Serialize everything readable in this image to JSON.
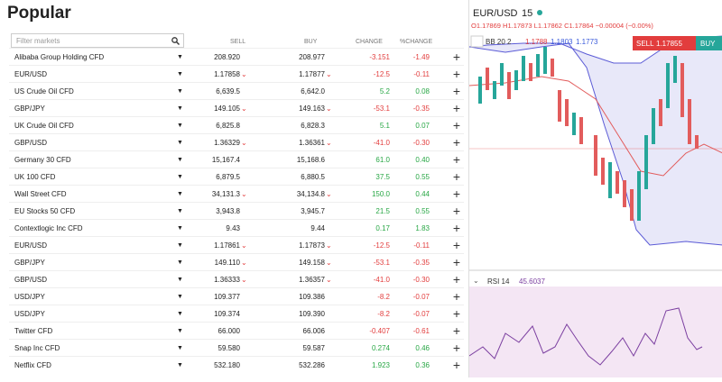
{
  "header": {
    "title": "Popular",
    "filter_placeholder": "Filter markets"
  },
  "table": {
    "columns": [
      "SELL",
      "BUY",
      "CHANGE",
      "%CHANGE"
    ],
    "rows": [
      {
        "name": "Alibaba Group Holding CFD",
        "sell": "208.920",
        "buy": "208.977",
        "change": "-3.151",
        "pct": "-1.49",
        "down": false
      },
      {
        "name": "EUR/USD",
        "sell": "1.17858",
        "buy": "1.17877",
        "change": "-12.5",
        "pct": "-0.11",
        "down": true
      },
      {
        "name": "US Crude Oil CFD",
        "sell": "6,639.5",
        "buy": "6,642.0",
        "change": "5.2",
        "pct": "0.08",
        "down": false
      },
      {
        "name": "GBP/JPY",
        "sell": "149.105",
        "buy": "149.163",
        "change": "-53.1",
        "pct": "-0.35",
        "down": true
      },
      {
        "name": "UK Crude Oil CFD",
        "sell": "6,825.8",
        "buy": "6,828.3",
        "change": "5.1",
        "pct": "0.07",
        "down": false
      },
      {
        "name": "GBP/USD",
        "sell": "1.36329",
        "buy": "1.36361",
        "change": "-41.0",
        "pct": "-0.30",
        "down": true
      },
      {
        "name": "Germany 30 CFD",
        "sell": "15,167.4",
        "buy": "15,168.6",
        "change": "61.0",
        "pct": "0.40",
        "down": false
      },
      {
        "name": "UK 100 CFD",
        "sell": "6,879.5",
        "buy": "6,880.5",
        "change": "37.5",
        "pct": "0.55",
        "down": false
      },
      {
        "name": "Wall Street CFD",
        "sell": "34,131.3",
        "buy": "34,134.8",
        "change": "150.0",
        "pct": "0.44",
        "down": true
      },
      {
        "name": "EU Stocks 50 CFD",
        "sell": "3,943.8",
        "buy": "3,945.7",
        "change": "21.5",
        "pct": "0.55",
        "down": false
      },
      {
        "name": "Contextlogic Inc CFD",
        "sell": "9.43",
        "buy": "9.44",
        "change": "0.17",
        "pct": "1.83",
        "down": false
      },
      {
        "name": "EUR/USD",
        "sell": "1.17861",
        "buy": "1.17873",
        "change": "-12.5",
        "pct": "-0.11",
        "down": true
      },
      {
        "name": "GBP/JPY",
        "sell": "149.110",
        "buy": "149.158",
        "change": "-53.1",
        "pct": "-0.35",
        "down": true
      },
      {
        "name": "GBP/USD",
        "sell": "1.36333",
        "buy": "1.36357",
        "change": "-41.0",
        "pct": "-0.30",
        "down": true
      },
      {
        "name": "USD/JPY",
        "sell": "109.377",
        "buy": "109.386",
        "change": "-8.2",
        "pct": "-0.07",
        "down": false
      },
      {
        "name": "USD/JPY",
        "sell": "109.374",
        "buy": "109.390",
        "change": "-8.2",
        "pct": "-0.07",
        "down": false
      },
      {
        "name": "Twitter CFD",
        "sell": "66.000",
        "buy": "66.006",
        "change": "-0.407",
        "pct": "-0.61",
        "down": false
      },
      {
        "name": "Snap Inc CFD",
        "sell": "59.580",
        "buy": "59.587",
        "change": "0.274",
        "pct": "0.46",
        "down": false
      },
      {
        "name": "Netflix CFD",
        "sell": "532.180",
        "buy": "532.286",
        "change": "1.923",
        "pct": "0.36",
        "down": false
      }
    ]
  },
  "chart": {
    "symbol": "EUR/USD",
    "interval": "15",
    "open": "O1.17869",
    "high": "H1.17873",
    "low": "L1.17862",
    "close": "C1.17864",
    "delta": "−0.00004 (−0.00%)",
    "bb": "BB 20 2",
    "bb_mid": "1.1788",
    "bb_upper": "1.1803",
    "bb_lower": "1.1773",
    "sell_label": "SELL",
    "sell_price": "1.17855",
    "buy_label": "BUY",
    "rsi": "RSI 14",
    "rsi_value": "45.6037"
  }
}
